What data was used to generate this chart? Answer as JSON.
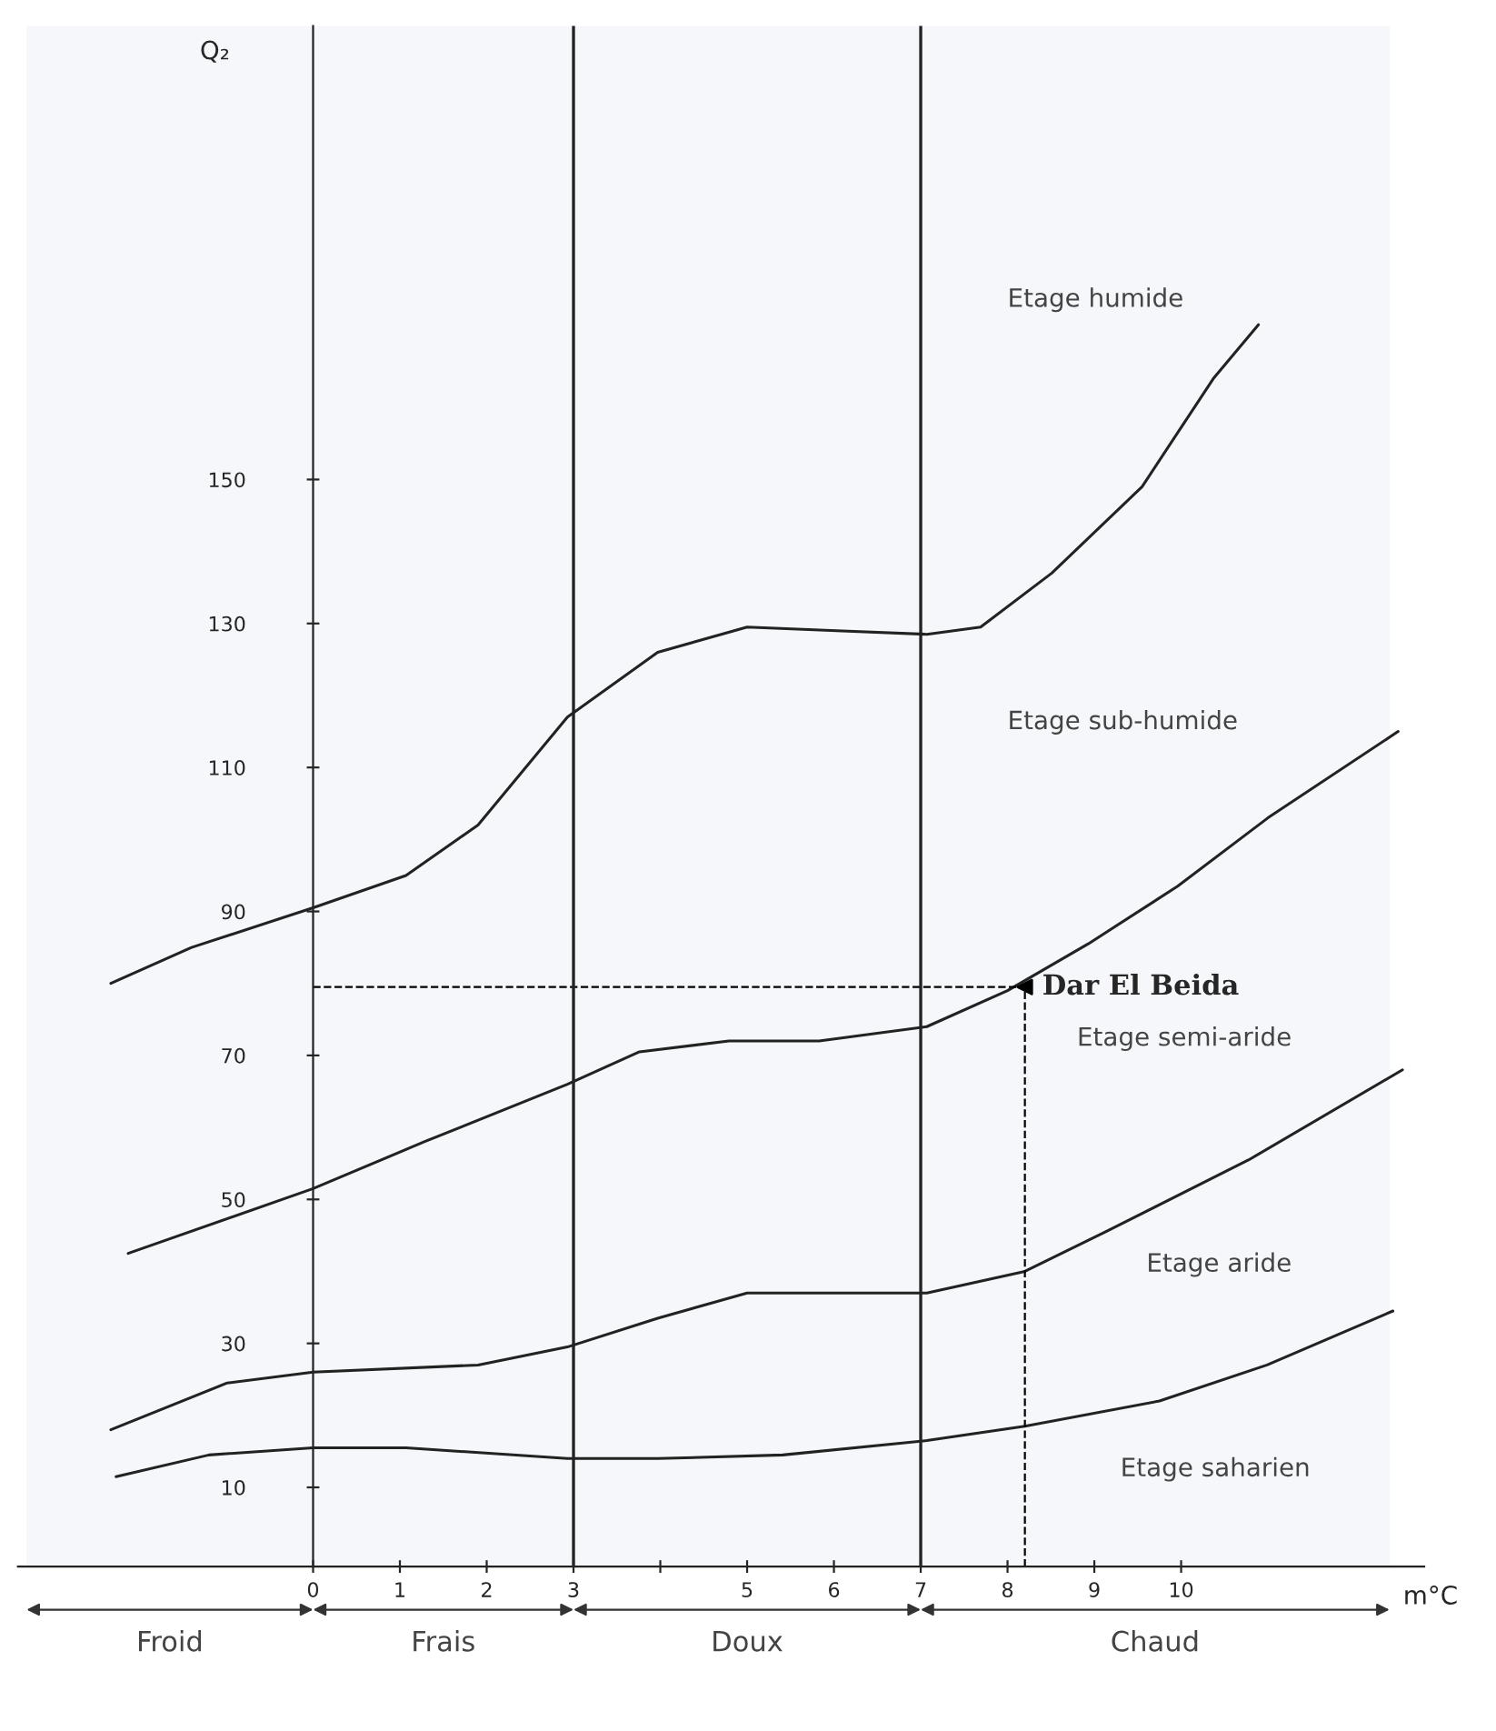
{
  "chart_data": {
    "type": "line",
    "xlabel": "m°C",
    "ylabel": "Q₂",
    "xlim": [
      -3.4,
      12.8
    ],
    "ylim": [
      -1,
      213
    ],
    "xticks": [
      0,
      1,
      2,
      3,
      {
        "value": 4,
        "label": null
      },
      5,
      6,
      7,
      8,
      9,
      10
    ],
    "yticks": [
      10,
      30,
      50,
      70,
      90,
      110,
      130,
      150
    ],
    "grid": false,
    "legend": false,
    "marker": "none",
    "series": [
      {
        "color": "#222222",
        "x": [
          -2.33,
          -1.4,
          0,
          1.07,
          1.9,
          2.93,
          3.97,
          5.0,
          6.03,
          7.07,
          7.69,
          8.51,
          9.55,
          10.37,
          10.89
        ],
        "values": [
          80,
          85,
          90.5,
          95,
          102,
          117,
          126,
          129.5,
          129,
          128.5,
          129.5,
          137,
          149,
          164,
          171.5
        ]
      },
      {
        "color": "#222222",
        "x": [
          -2.13,
          0,
          1.28,
          2.93,
          3.76,
          4.79,
          5.83,
          7.07,
          8.0,
          8.93,
          9.96,
          11.0,
          12.5
        ],
        "values": [
          42.5,
          51.5,
          58,
          66,
          70.5,
          72,
          72,
          74,
          79,
          85.5,
          93.5,
          103,
          115
        ]
      },
      {
        "color": "#222222",
        "x": [
          -2.33,
          -0.99,
          0,
          1.9,
          2.93,
          3.97,
          5.0,
          6.03,
          7.07,
          8.2,
          9.13,
          10.78,
          12.55
        ],
        "values": [
          18,
          24.5,
          26,
          27,
          29.5,
          33.5,
          37,
          37,
          37,
          40,
          45.5,
          55.5,
          68
        ]
      },
      {
        "color": "#222222",
        "x": [
          -2.27,
          -1.2,
          0,
          1.07,
          2.93,
          3.97,
          5.41,
          7.07,
          8.2,
          9.75,
          10.99,
          12.44
        ],
        "values": [
          11.5,
          14.5,
          15.5,
          15.5,
          14,
          14,
          14.5,
          16.5,
          18.5,
          22,
          27,
          34.5
        ]
      },
      {
        "type": "scatter",
        "name": "Dar El Beida",
        "color": "#000000",
        "marker": "triangle",
        "line_style": "dashed",
        "x": [
          8.2
        ],
        "values": [
          79.5
        ]
      }
    ],
    "ref_lines": [
      {
        "axis": "x",
        "value": 3,
        "color": "#222222"
      },
      {
        "axis": "x",
        "value": 7,
        "color": "#222222"
      }
    ],
    "bands": [
      {
        "axis": "x",
        "from": -3.3,
        "to": 0,
        "label": "Froid",
        "color": "#f5f7fa"
      },
      {
        "axis": "x",
        "from": 0,
        "to": 3,
        "label": "Frais",
        "color": "#f5f7fa"
      },
      {
        "axis": "x",
        "from": 3,
        "to": 7,
        "label": "Doux",
        "color": "#f5f7fa"
      },
      {
        "axis": "x",
        "from": 7,
        "to": 12.4,
        "label": "Chaud",
        "color": "#f5f7fa"
      }
    ],
    "annotations": [
      "Etage humide",
      "Etage sub-humide",
      "Etage semi-aride",
      "Etage aride",
      "Etage saharien"
    ]
  }
}
